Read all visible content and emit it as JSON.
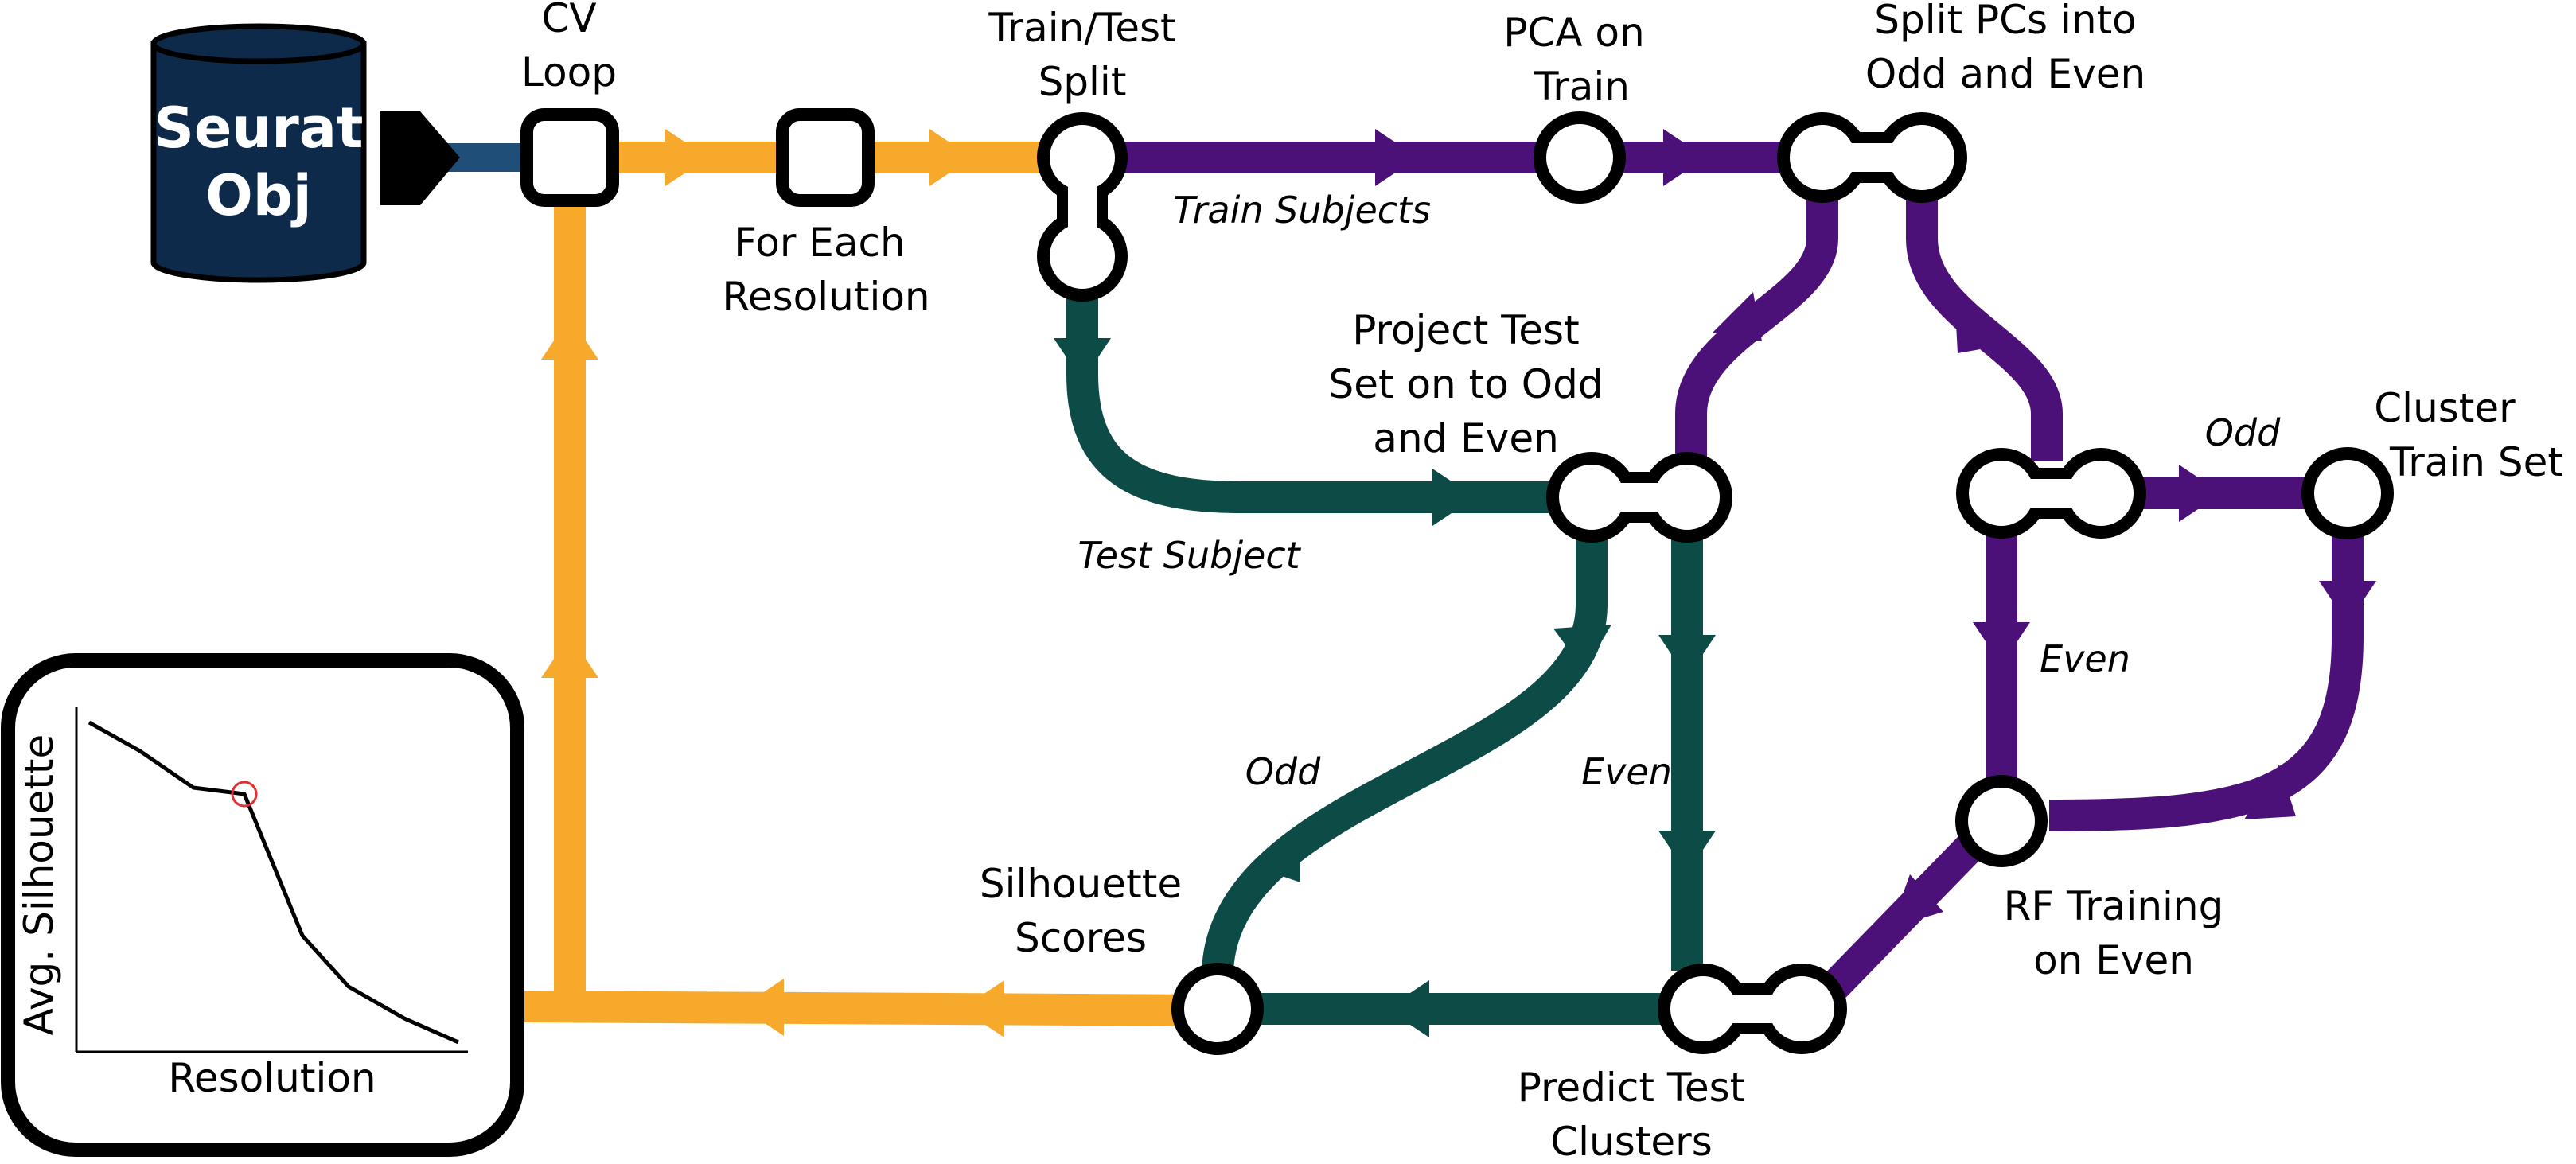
{
  "colors": {
    "blue": "#1f4e79",
    "orange": "#f6a92a",
    "purple": "#4b1178",
    "teal": "#0d4b47",
    "node_stroke": "#000000",
    "database": "#0e2a4a",
    "marker": "#e03030"
  },
  "database": {
    "line1": "Seurat",
    "line2": "Obj"
  },
  "nodes": {
    "cv_loop": {
      "line1": "CV",
      "line2": "Loop"
    },
    "for_each": {
      "line1": "For Each",
      "line2": "Resolution"
    },
    "train_test": {
      "line1": "Train/Test",
      "line2": "Split"
    },
    "pca": {
      "line1": "PCA on",
      "line2": "Train"
    },
    "split_pcs": {
      "line1": "Split PCs into",
      "line2": "Odd and Even"
    },
    "project_test": {
      "line1": "Project Test",
      "line2": "Set on to Odd",
      "line3": "and Even"
    },
    "cluster_train": {
      "line1": "Cluster",
      "line2": "Train Set"
    },
    "rf_training": {
      "line1": "RF Training",
      "line2": "on Even"
    },
    "predict_test": {
      "line1": "Predict Test",
      "line2": "Clusters"
    },
    "silhouette": {
      "line1": "Silhouette",
      "line2": "Scores"
    }
  },
  "edge_labels": {
    "train_subjects": "Train Subjects",
    "test_subject": "Test Subject",
    "odd_top": "Odd",
    "even_right": "Even",
    "odd_mid": "Odd",
    "even_mid": "Even"
  },
  "plot": {
    "ylabel": "Avg. Silhouette",
    "xlabel": "Resolution",
    "selected_index": 3
  }
}
